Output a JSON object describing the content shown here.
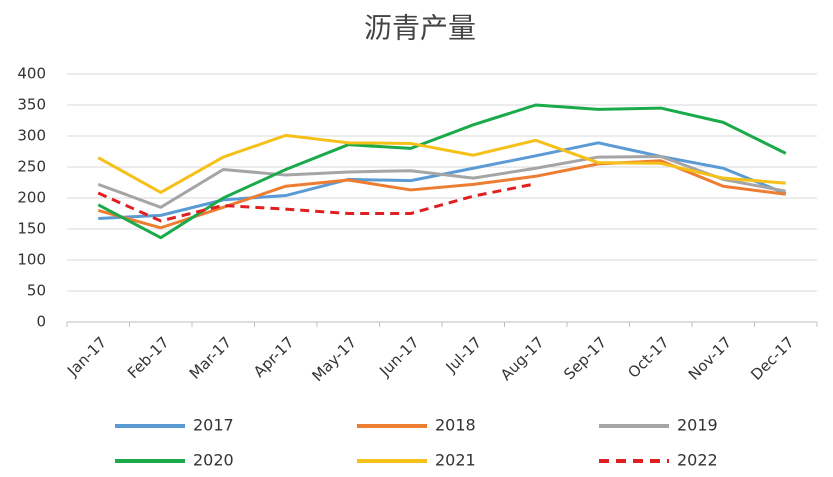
{
  "chart_data": {
    "type": "line",
    "title": "沥青产量",
    "categories": [
      "Jan-17",
      "Feb-17",
      "Mar-17",
      "Apr-17",
      "May-17",
      "Jun-17",
      "Jul-17",
      "Aug-17",
      "Sep-17",
      "Oct-17",
      "Nov-17",
      "Dec-17"
    ],
    "series": [
      {
        "name": "2017",
        "color": "#5b9bd5",
        "values": [
          167,
          172,
          197,
          204,
          230,
          228,
          248,
          268,
          289,
          267,
          248,
          207
        ]
      },
      {
        "name": "2018",
        "color": "#ed7d31",
        "values": [
          180,
          152,
          185,
          219,
          229,
          213,
          222,
          235,
          255,
          260,
          219,
          206
        ]
      },
      {
        "name": "2019",
        "color": "#a5a5a5",
        "values": [
          222,
          185,
          246,
          237,
          242,
          244,
          232,
          248,
          266,
          267,
          230,
          211
        ]
      },
      {
        "name": "2020",
        "color": "#1aaa4a",
        "values": [
          189,
          136,
          200,
          246,
          286,
          280,
          318,
          350,
          343,
          345,
          322,
          272
        ]
      },
      {
        "name": "2021",
        "color": "#f5c018",
        "values": [
          265,
          209,
          266,
          301,
          289,
          288,
          269,
          293,
          257,
          256,
          232,
          224
        ]
      },
      {
        "name": "2022",
        "color": "#e02020",
        "dashed": true,
        "values": [
          208,
          163,
          188,
          182,
          175,
          175,
          203,
          223,
          null,
          null,
          null,
          null
        ]
      }
    ],
    "ylim": [
      0,
      400
    ],
    "yticks": [
      0,
      50,
      100,
      150,
      200,
      250,
      300,
      350,
      400
    ],
    "grid": true
  }
}
